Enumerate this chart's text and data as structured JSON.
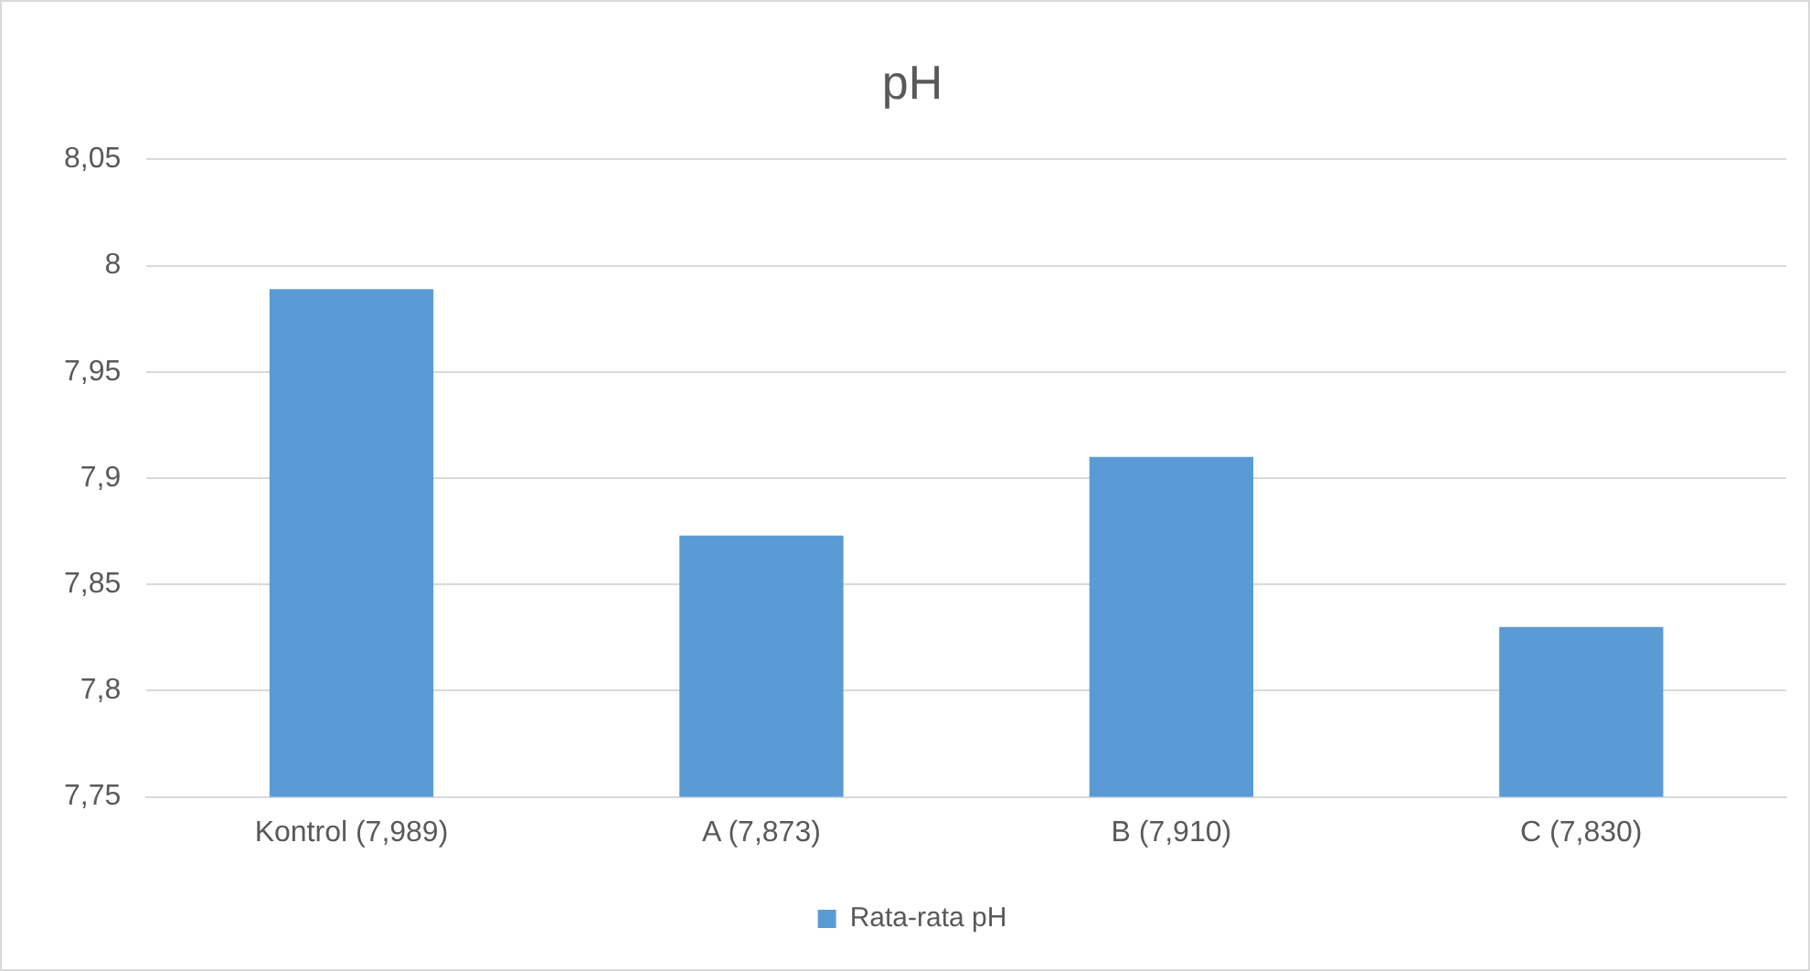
{
  "chart_data": {
    "type": "bar",
    "title": "pH",
    "categories": [
      "Kontrol (7,989)",
      "A (7,873)",
      "B (7,910)",
      "C (7,830)"
    ],
    "series": [
      {
        "name": "Rata-rata pH",
        "color": "#5b9bd5",
        "values": [
          7.989,
          7.873,
          7.91,
          7.83
        ]
      }
    ],
    "ylim": [
      7.75,
      8.05
    ],
    "yticks": [
      {
        "value": 7.75,
        "label": "7,75"
      },
      {
        "value": 7.8,
        "label": "7,8"
      },
      {
        "value": 7.85,
        "label": "7,85"
      },
      {
        "value": 7.9,
        "label": "7,9"
      },
      {
        "value": 7.95,
        "label": "7,95"
      },
      {
        "value": 8,
        "label": "8"
      },
      {
        "value": 8.05,
        "label": "8,05"
      }
    ],
    "grid": "y",
    "legend": "bottom"
  }
}
